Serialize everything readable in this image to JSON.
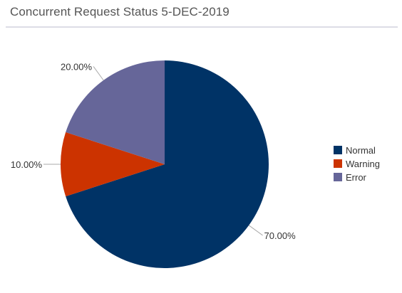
{
  "page": {
    "title": "Concurrent Request Status 5-DEC-2019"
  },
  "chart_data": {
    "type": "pie",
    "title": "Concurrent Request Status 5-DEC-2019",
    "slices": [
      {
        "label": "Normal",
        "value": 70,
        "display": "70.00%",
        "color": "#003366"
      },
      {
        "label": "Warning",
        "value": 10,
        "display": "10.00%",
        "color": "#cc3300"
      },
      {
        "label": "Error",
        "value": 20,
        "display": "20.00%",
        "color": "#666699"
      }
    ],
    "start_angle_deg": 0,
    "direction": "clockwise",
    "legend_position": "right"
  }
}
